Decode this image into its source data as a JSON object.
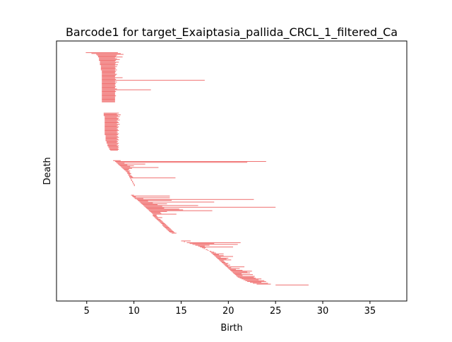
{
  "chart_data": {
    "type": "barcode",
    "title": "Barcode1 for target_Exaiptasia_pallida_CRCL_1_filtered_Ca",
    "xlabel": "Birth",
    "ylabel": "Death",
    "xlim": [
      1.8,
      38.9
    ],
    "xticks": [
      5,
      10,
      15,
      20,
      25,
      30,
      35
    ],
    "yticks": [],
    "bar_color": "#f07575",
    "grid": false,
    "legend": false,
    "bar_groups": [
      {
        "name": "group-1",
        "start_index": 0,
        "count": 58,
        "start_births": [
          4.9,
          5.5,
          6.0,
          6.1,
          6.2,
          6.2,
          6.3,
          6.3,
          6.3,
          6.3,
          6.4,
          6.4,
          6.4,
          6.4,
          6.4,
          6.5,
          6.5,
          6.5,
          6.5,
          6.5,
          6.5,
          6.6,
          6.6,
          6.6,
          6.6,
          6.6,
          6.6,
          6.6,
          6.6,
          6.6,
          6.6,
          6.6,
          6.6,
          6.6,
          6.6,
          6.6,
          6.6,
          6.6,
          6.6,
          6.6,
          6.6,
          6.6,
          6.6,
          6.6,
          6.6,
          6.6,
          6.6,
          6.6,
          6.6,
          6.6,
          6.6,
          6.6,
          6.6,
          6.6,
          6.6,
          6.6,
          6.6,
          6.6
        ],
        "end_deaths": [
          8.3,
          8.6,
          8.9,
          8.2,
          8.1,
          8.8,
          8.0,
          8.2,
          8.5,
          8.1,
          8.0,
          8.4,
          8.1,
          8.0,
          8.3,
          8.0,
          8.2,
          8.0,
          8.1,
          8.0,
          8.2,
          8.0,
          8.1,
          8.0,
          8.0,
          8.2,
          8.1,
          8.0,
          8.0,
          8.8,
          8.0,
          8.1,
          17.5,
          8.0,
          8.2,
          8.0,
          8.1,
          8.0,
          8.0,
          8.1,
          8.0,
          8.0,
          8.2,
          11.8,
          8.0,
          8.1,
          8.0,
          8.0,
          8.0,
          8.0,
          8.1,
          8.0,
          8.0,
          8.0,
          8.0,
          8.0,
          8.0,
          8.0
        ]
      },
      {
        "name": "group-2",
        "start_index": 70,
        "count": 44,
        "start_births": [
          6.8,
          6.8,
          6.8,
          6.8,
          6.9,
          6.9,
          6.9,
          6.9,
          6.9,
          6.9,
          6.9,
          6.9,
          6.9,
          6.9,
          6.9,
          6.9,
          6.9,
          6.9,
          6.9,
          6.9,
          6.9,
          6.9,
          6.9,
          6.9,
          6.9,
          6.9,
          7.0,
          7.0,
          7.0,
          7.0,
          7.0,
          7.0,
          7.0,
          7.1,
          7.1,
          7.1,
          7.2,
          7.2,
          7.2,
          7.3,
          7.3,
          7.4,
          7.4,
          7.5
        ],
        "end_deaths": [
          8.4,
          8.2,
          8.6,
          8.3,
          8.5,
          8.2,
          8.4,
          8.3,
          8.5,
          8.2,
          8.3,
          8.4,
          8.2,
          8.5,
          8.3,
          8.2,
          8.4,
          8.3,
          8.2,
          8.3,
          8.4,
          8.2,
          8.3,
          8.2,
          8.4,
          8.3,
          8.2,
          8.3,
          8.4,
          8.2,
          8.3,
          8.4,
          8.2,
          8.3,
          8.2,
          8.4,
          8.3,
          8.2,
          8.4,
          8.3,
          8.4,
          8.3,
          8.4,
          8.3
        ]
      },
      {
        "name": "group-3",
        "start_index": 125,
        "count": 30,
        "start_births": [
          7.8,
          8.0,
          8.1,
          8.2,
          8.3,
          8.4,
          8.5,
          8.6,
          8.7,
          8.8,
          8.9,
          9.0,
          9.1,
          9.2,
          9.3,
          9.3,
          9.4,
          9.4,
          9.5,
          9.5,
          9.6,
          9.6,
          9.7,
          9.7,
          9.8,
          9.8,
          9.9,
          9.9,
          10.0,
          10.0
        ],
        "end_deaths": [
          8.6,
          24.0,
          22.0,
          9.0,
          11.2,
          9.3,
          10.0,
          9.6,
          12.6,
          9.8,
          9.5,
          9.4,
          9.6,
          9.5,
          9.6,
          9.7,
          9.6,
          9.7,
          9.8,
          9.9,
          14.4,
          9.7,
          9.8,
          9.8,
          9.9,
          9.9,
          10.0,
          10.0,
          10.1,
          10.1
        ]
      },
      {
        "name": "group-4",
        "start_index": 165,
        "count": 45,
        "start_births": [
          9.7,
          9.8,
          9.9,
          10.0,
          10.1,
          10.3,
          10.4,
          10.5,
          10.6,
          10.7,
          10.8,
          10.9,
          11.0,
          11.1,
          11.2,
          11.3,
          11.4,
          11.5,
          11.6,
          11.7,
          11.8,
          11.9,
          12.0,
          12.0,
          12.0,
          12.1,
          12.2,
          12.3,
          12.4,
          12.5,
          12.6,
          12.7,
          12.8,
          12.9,
          13.0,
          13.0,
          13.1,
          13.2,
          13.3,
          13.4,
          13.5,
          13.6,
          13.7,
          13.8,
          14.0
        ],
        "end_deaths": [
          10.0,
          13.8,
          10.2,
          13.8,
          11.0,
          22.7,
          14.0,
          11.5,
          18.5,
          12.0,
          13.5,
          12.5,
          16.8,
          13.0,
          25.0,
          13.2,
          14.8,
          15.2,
          18.3,
          13.5,
          12.8,
          12.9,
          14.5,
          12.4,
          12.4,
          12.5,
          13.0,
          12.6,
          12.8,
          12.9,
          13.0,
          13.1,
          13.2,
          13.3,
          13.4,
          13.5,
          13.6,
          13.7,
          13.8,
          13.9,
          14.0,
          14.1,
          14.2,
          14.3,
          14.5
        ]
      },
      {
        "name": "group-5",
        "start_index": 218,
        "count": 52,
        "start_births": [
          15.0,
          15.3,
          15.6,
          15.9,
          16.2,
          16.5,
          16.8,
          17.0,
          17.2,
          17.4,
          17.6,
          17.8,
          18.0,
          18.1,
          18.2,
          18.3,
          18.4,
          18.5,
          18.6,
          18.7,
          18.8,
          18.9,
          19.0,
          19.1,
          19.2,
          19.3,
          19.4,
          19.5,
          19.6,
          19.7,
          19.8,
          19.9,
          20.0,
          20.1,
          20.2,
          20.3,
          20.4,
          20.5,
          20.6,
          20.7,
          20.8,
          20.9,
          21.0,
          21.2,
          21.4,
          21.6,
          21.8,
          22.0,
          22.3,
          22.6,
          23.0,
          25.0
        ],
        "end_deaths": [
          16.0,
          15.4,
          21.3,
          18.5,
          21.0,
          18.0,
          17.5,
          20.5,
          17.6,
          17.5,
          17.8,
          17.9,
          18.2,
          18.5,
          18.7,
          19.5,
          19.0,
          19.5,
          20.5,
          19.2,
          20.0,
          19.8,
          20.3,
          19.5,
          19.6,
          19.7,
          20.0,
          19.9,
          20.2,
          20.0,
          21.7,
          20.3,
          21.2,
          20.8,
          21.5,
          22.5,
          22.0,
          22.3,
          21.4,
          22.6,
          21.5,
          22.8,
          22.7,
          22.9,
          23.5,
          23.2,
          23.8,
          24.0,
          23.5,
          24.2,
          24.5,
          28.5
        ]
      }
    ]
  },
  "colors": {
    "bar": "#f07575",
    "axes": "#000000",
    "background": "#ffffff"
  }
}
